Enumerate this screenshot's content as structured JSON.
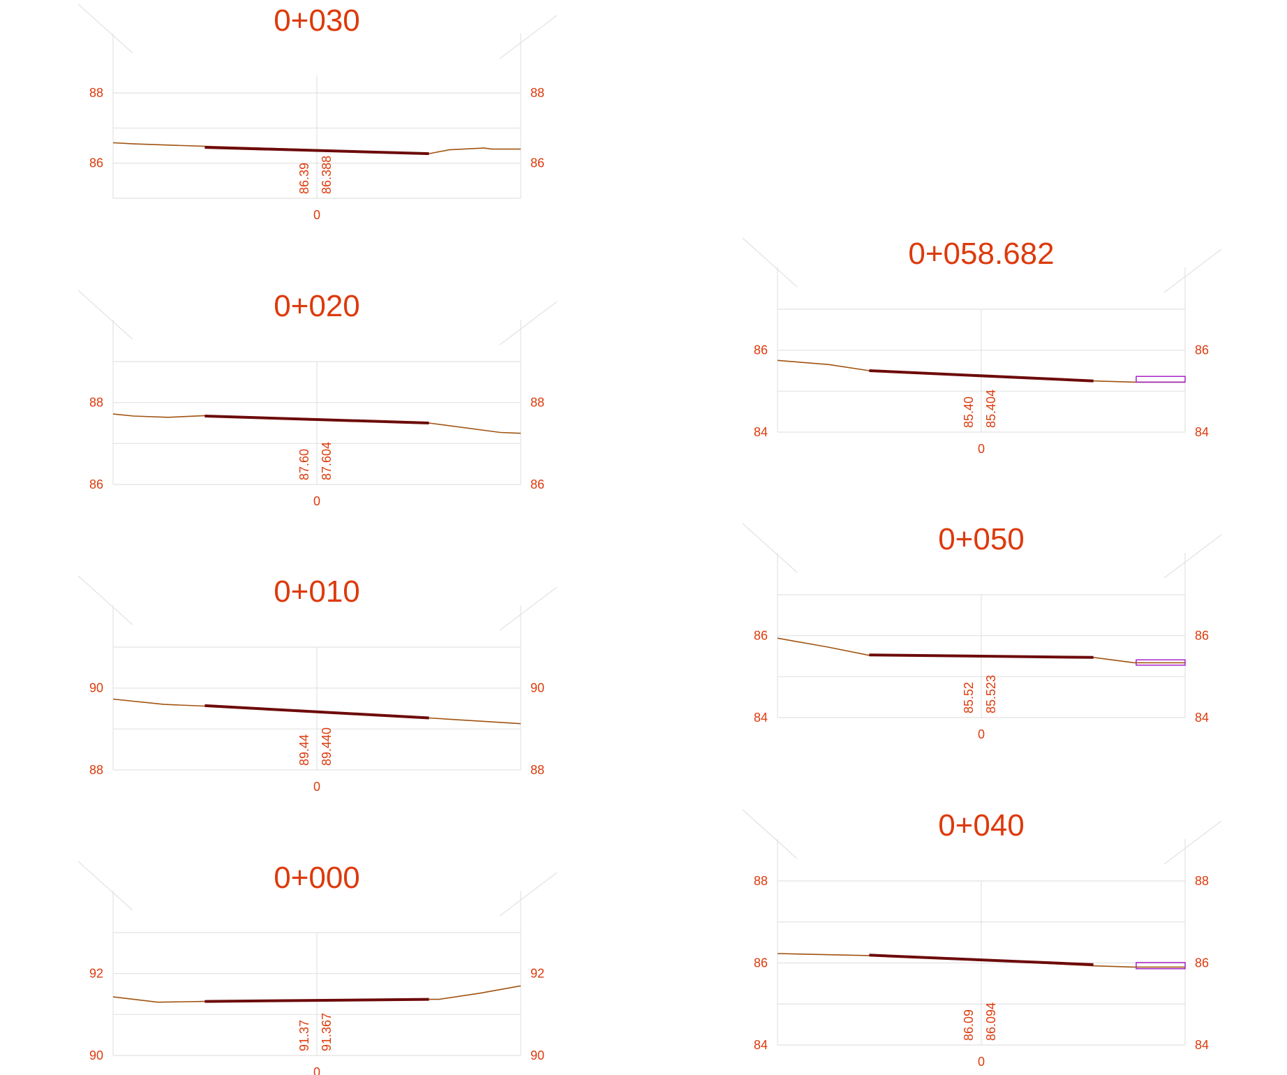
{
  "sections": [
    {
      "id": "s030",
      "title": "0+030",
      "yMin": 85,
      "yMax": 88.5,
      "labeled": [
        86,
        88
      ],
      "offsetLabel": "0",
      "existingLabel": "86.39",
      "designLabel": "86.388",
      "ground": [
        [
          -10,
          86.58
        ],
        [
          -9,
          86.55
        ],
        [
          -5.5,
          86.48
        ],
        [
          0,
          86.38
        ],
        [
          5.5,
          86.27
        ],
        [
          6.5,
          86.38
        ],
        [
          8.2,
          86.43
        ],
        [
          8.6,
          86.4
        ],
        [
          10,
          86.4
        ]
      ],
      "design": [
        [
          -5.5,
          86.45
        ],
        [
          5.5,
          86.27
        ]
      ],
      "box": null
    },
    {
      "id": "s020",
      "title": "0+020",
      "yMin": 86,
      "yMax": 89,
      "labeled": [
        86,
        88
      ],
      "offsetLabel": "0",
      "existingLabel": "87.60",
      "designLabel": "87.604",
      "ground": [
        [
          -10,
          87.72
        ],
        [
          -9,
          87.67
        ],
        [
          -7.3,
          87.64
        ],
        [
          -5.5,
          87.68
        ],
        [
          0,
          87.6
        ],
        [
          5.5,
          87.5
        ],
        [
          9,
          87.27
        ],
        [
          10,
          87.25
        ]
      ],
      "design": [
        [
          -5.5,
          87.67
        ],
        [
          5.5,
          87.5
        ]
      ],
      "box": null
    },
    {
      "id": "s010",
      "title": "0+010",
      "yMin": 88,
      "yMax": 91,
      "labeled": [
        88,
        90
      ],
      "offsetLabel": "0",
      "existingLabel": "89.44",
      "designLabel": "89.440",
      "ground": [
        [
          -10,
          89.73
        ],
        [
          -7.5,
          89.6
        ],
        [
          -5.5,
          89.56
        ],
        [
          0,
          89.42
        ],
        [
          5.5,
          89.27
        ],
        [
          10,
          89.13
        ]
      ],
      "design": [
        [
          -5.5,
          89.57
        ],
        [
          5.5,
          89.27
        ]
      ],
      "box": null
    },
    {
      "id": "s000",
      "title": "0+000",
      "yMin": 90,
      "yMax": 93,
      "labeled": [
        90,
        92
      ],
      "offsetLabel": "0",
      "existingLabel": "91.37",
      "designLabel": "91.367",
      "ground": [
        [
          -10,
          91.43
        ],
        [
          -7.8,
          91.3
        ],
        [
          -5.5,
          91.32
        ],
        [
          0,
          91.35
        ],
        [
          5.5,
          91.37
        ],
        [
          6,
          91.37
        ],
        [
          8,
          91.52
        ],
        [
          10,
          91.7
        ]
      ],
      "design": [
        [
          -5.5,
          91.32
        ],
        [
          5.5,
          91.37
        ]
      ],
      "box": null
    },
    {
      "id": "s058",
      "title": "0+058.682",
      "yMin": 84,
      "yMax": 87,
      "labeled": [
        84,
        86
      ],
      "offsetLabel": "0",
      "existingLabel": "85.40",
      "designLabel": "85.404",
      "ground": [
        [
          -10,
          85.75
        ],
        [
          -7.5,
          85.65
        ],
        [
          -5.5,
          85.5
        ],
        [
          0,
          85.39
        ],
        [
          5.5,
          85.25
        ],
        [
          7.5,
          85.22
        ],
        [
          10,
          85.22
        ]
      ],
      "design": [
        [
          -5.5,
          85.5
        ],
        [
          5.5,
          85.25
        ]
      ],
      "box": [
        [
          7.6,
          85.22
        ],
        [
          10,
          85.36
        ]
      ]
    },
    {
      "id": "s050",
      "title": "0+050",
      "yMin": 84,
      "yMax": 87,
      "labeled": [
        84,
        86
      ],
      "offsetLabel": "0",
      "existingLabel": "85.52",
      "designLabel": "85.523",
      "ground": [
        [
          -10,
          85.94
        ],
        [
          -7.5,
          85.72
        ],
        [
          -5.5,
          85.52
        ],
        [
          0,
          85.5
        ],
        [
          5.5,
          85.47
        ],
        [
          7.5,
          85.34
        ],
        [
          10,
          85.34
        ]
      ],
      "design": [
        [
          -5.5,
          85.53
        ],
        [
          5.5,
          85.47
        ]
      ],
      "box": [
        [
          7.6,
          85.28
        ],
        [
          10,
          85.41
        ]
      ]
    },
    {
      "id": "s040",
      "title": "0+040",
      "yMin": 84,
      "yMax": 88,
      "labeled": [
        84,
        86,
        88
      ],
      "offsetLabel": "0",
      "existingLabel": "86.09",
      "designLabel": "86.094",
      "ground": [
        [
          -10,
          86.23
        ],
        [
          -5.5,
          86.18
        ],
        [
          0,
          86.07
        ],
        [
          5.5,
          85.93
        ],
        [
          7.5,
          85.9
        ],
        [
          10,
          85.9
        ]
      ],
      "design": [
        [
          -5.5,
          86.19
        ],
        [
          5.5,
          85.96
        ]
      ],
      "box": [
        [
          7.6,
          85.86
        ],
        [
          10,
          86.01
        ]
      ]
    }
  ]
}
